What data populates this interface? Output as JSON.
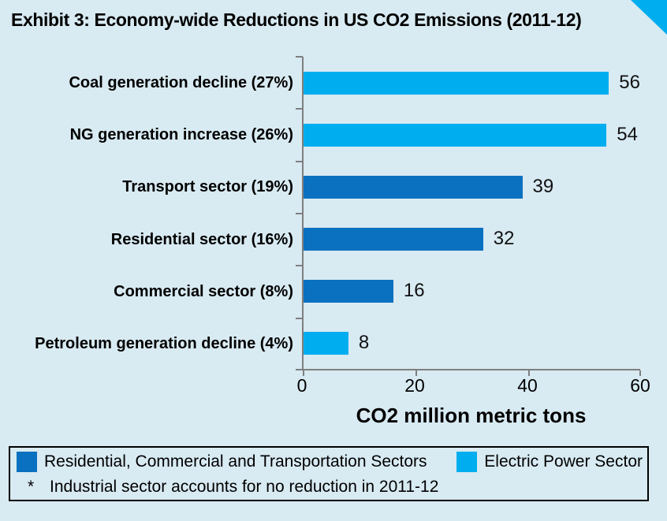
{
  "title": "Exhibit 3: Economy-wide Reductions in US CO2 Emissions (2011-12)",
  "chart_data": {
    "type": "bar",
    "orientation": "horizontal",
    "categories": [
      "Coal generation decline (27%)",
      "NG generation increase (26%)",
      "Transport sector (19%)",
      "Residential sector (16%)",
      "Commercial sector (8%)",
      "Petroleum generation decline (4%)"
    ],
    "values": [
      56,
      54,
      39,
      32,
      16,
      8
    ],
    "bar_series": [
      "electric",
      "electric",
      "rct",
      "rct",
      "rct",
      "electric"
    ],
    "series_colors": {
      "rct": "#0a71c0",
      "electric": "#00aeef"
    },
    "xlabel": "CO2 million metric tons",
    "xticks": [
      0,
      20,
      40,
      60
    ],
    "xlim": [
      0,
      60
    ],
    "grid": false,
    "legend_position": "bottom",
    "legend": [
      {
        "label": "Residential, Commercial and Transportation Sectors",
        "color": "#0a71c0",
        "series": "rct"
      },
      {
        "label": "Electric Power Sector",
        "color": "#00aeef",
        "series": "electric"
      }
    ],
    "footnote_marker": "*",
    "footnote_text": "Industrial sector accounts for no reduction in 2011-12"
  },
  "colors": {
    "background": "#d8eaf2",
    "accent_triangle": "#00aeef",
    "axis_gray": "#7f7f7f",
    "text": "#000000",
    "legend_border": "#000000"
  }
}
